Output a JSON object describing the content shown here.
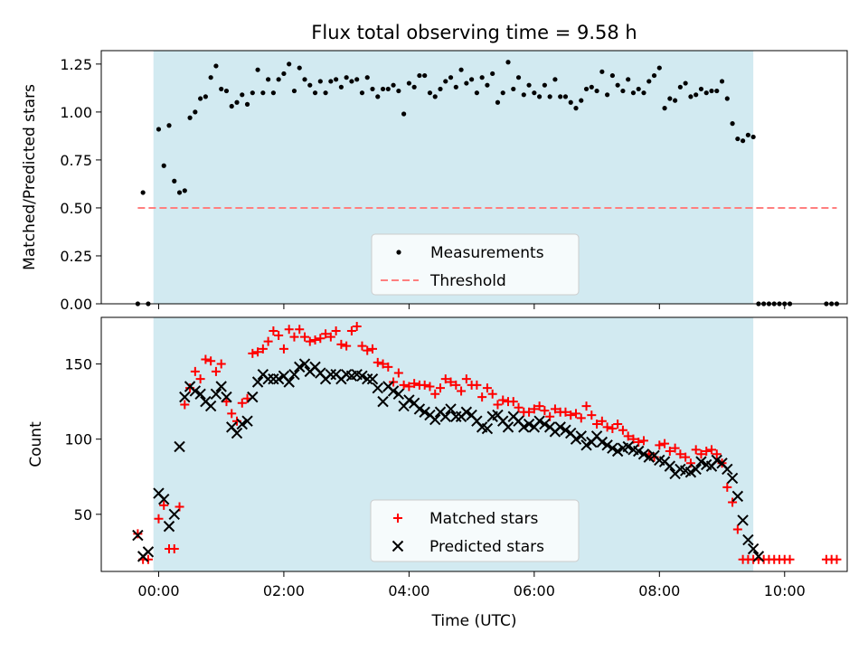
{
  "chart_data": [
    {
      "type": "scatter",
      "title": "Flux total observing time = 9.58 h",
      "ylabel": "Matched/Predicted stars",
      "xlabel": "",
      "xlim": [
        "-00:55",
        "11:00"
      ],
      "ylim": [
        0,
        1.32
      ],
      "yticks": [
        "0.00",
        "0.25",
        "0.50",
        "0.75",
        "1.00",
        "1.25"
      ],
      "x_tick_labels_visible": false,
      "observing_window": [
        "-00:05",
        "09:30"
      ],
      "legend": {
        "placement": "lower-center",
        "entries": [
          "Measurements",
          "Threshold"
        ]
      },
      "threshold": {
        "name": "Threshold",
        "value": 0.5,
        "x_range": [
          "-00:20",
          "10:50"
        ],
        "color": "#ff7f7f"
      },
      "series": [
        {
          "name": "Measurements",
          "marker": "dot",
          "color": "#000000",
          "x": [
            "-00:20",
            "-00:15",
            "-00:10",
            "00:00",
            "00:05",
            "00:10",
            "00:15",
            "00:20",
            "00:25",
            "00:30",
            "00:35",
            "00:40",
            "00:45",
            "00:50",
            "00:55",
            "01:00",
            "01:05",
            "01:10",
            "01:15",
            "01:20",
            "01:25",
            "01:30",
            "01:35",
            "01:40",
            "01:45",
            "01:50",
            "01:55",
            "02:00",
            "02:05",
            "02:10",
            "02:15",
            "02:20",
            "02:25",
            "02:30",
            "02:35",
            "02:40",
            "02:45",
            "02:50",
            "02:55",
            "03:00",
            "03:05",
            "03:10",
            "03:15",
            "03:20",
            "03:25",
            "03:30",
            "03:35",
            "03:40",
            "03:45",
            "03:50",
            "03:55",
            "04:00",
            "04:05",
            "04:10",
            "04:15",
            "04:20",
            "04:25",
            "04:30",
            "04:35",
            "04:40",
            "04:45",
            "04:50",
            "04:55",
            "05:00",
            "05:05",
            "05:10",
            "05:15",
            "05:20",
            "05:25",
            "05:30",
            "05:35",
            "05:40",
            "05:45",
            "05:50",
            "05:55",
            "06:00",
            "06:05",
            "06:10",
            "06:15",
            "06:20",
            "06:25",
            "06:30",
            "06:35",
            "06:40",
            "06:45",
            "06:50",
            "06:55",
            "07:00",
            "07:05",
            "07:10",
            "07:15",
            "07:20",
            "07:25",
            "07:30",
            "07:35",
            "07:40",
            "07:45",
            "07:50",
            "07:55",
            "08:00",
            "08:05",
            "08:10",
            "08:15",
            "08:20",
            "08:25",
            "08:30",
            "08:35",
            "08:40",
            "08:45",
            "08:50",
            "08:55",
            "09:00",
            "09:05",
            "09:10",
            "09:15",
            "09:20",
            "09:25",
            "09:30",
            "09:35",
            "09:40",
            "09:45",
            "09:50",
            "09:55",
            "10:00",
            "10:05",
            "10:40",
            "10:45",
            "10:50"
          ],
          "y": [
            0.0,
            0.58,
            0.0,
            0.91,
            0.72,
            0.93,
            0.64,
            0.58,
            0.59,
            0.97,
            1.0,
            1.07,
            1.08,
            1.18,
            1.24,
            1.12,
            1.11,
            1.03,
            1.05,
            1.09,
            1.04,
            1.1,
            1.22,
            1.1,
            1.17,
            1.1,
            1.17,
            1.2,
            1.25,
            1.11,
            1.23,
            1.17,
            1.14,
            1.1,
            1.16,
            1.1,
            1.16,
            1.17,
            1.13,
            1.18,
            1.16,
            1.17,
            1.1,
            1.18,
            1.12,
            1.08,
            1.12,
            1.12,
            1.14,
            1.11,
            0.99,
            1.15,
            1.13,
            1.19,
            1.19,
            1.1,
            1.08,
            1.12,
            1.16,
            1.18,
            1.13,
            1.22,
            1.15,
            1.17,
            1.1,
            1.18,
            1.14,
            1.2,
            1.05,
            1.1,
            1.26,
            1.12,
            1.18,
            1.09,
            1.14,
            1.1,
            1.08,
            1.14,
            1.08,
            1.17,
            1.08,
            1.08,
            1.05,
            1.02,
            1.06,
            1.12,
            1.13,
            1.11,
            1.21,
            1.09,
            1.19,
            1.14,
            1.11,
            1.17,
            1.1,
            1.12,
            1.1,
            1.16,
            1.19,
            1.23,
            1.02,
            1.07,
            1.06,
            1.13,
            1.15,
            1.08,
            1.09,
            1.12,
            1.1,
            1.11,
            1.11,
            1.16,
            1.07,
            0.94,
            0.86,
            0.85,
            0.88,
            0.87,
            0.0,
            0.0,
            0.0,
            0.0,
            0.0,
            0.0,
            0.0,
            0.0,
            0.0,
            0.0
          ]
        }
      ]
    },
    {
      "type": "scatter",
      "title": "",
      "ylabel": "Count",
      "xlabel": "Time (UTC)",
      "xlim": [
        "-00:55",
        "11:00"
      ],
      "ylim": [
        12,
        181
      ],
      "yticks": [
        "50",
        "100",
        "150"
      ],
      "xticks": [
        "00:00",
        "02:00",
        "04:00",
        "06:00",
        "08:00",
        "10:00"
      ],
      "observing_window": [
        "-00:05",
        "09:30"
      ],
      "legend": {
        "placement": "lower-center",
        "entries": [
          "Matched stars",
          "Predicted stars"
        ]
      },
      "series": [
        {
          "name": "Matched stars",
          "marker": "plus",
          "color": "#ff0000",
          "x": [
            "-00:20",
            "-00:15",
            "-00:10",
            "00:00",
            "00:05",
            "00:10",
            "00:15",
            "00:20",
            "00:25",
            "00:30",
            "00:35",
            "00:40",
            "00:45",
            "00:50",
            "00:55",
            "01:00",
            "01:05",
            "01:10",
            "01:15",
            "01:20",
            "01:25",
            "01:30",
            "01:35",
            "01:40",
            "01:45",
            "01:50",
            "01:55",
            "02:00",
            "02:05",
            "02:10",
            "02:15",
            "02:20",
            "02:25",
            "02:30",
            "02:35",
            "02:40",
            "02:45",
            "02:50",
            "02:55",
            "03:00",
            "03:05",
            "03:10",
            "03:15",
            "03:20",
            "03:25",
            "03:30",
            "03:35",
            "03:40",
            "03:45",
            "03:50",
            "03:55",
            "04:00",
            "04:05",
            "04:10",
            "04:15",
            "04:20",
            "04:25",
            "04:30",
            "04:35",
            "04:40",
            "04:45",
            "04:50",
            "04:55",
            "05:00",
            "05:05",
            "05:10",
            "05:15",
            "05:20",
            "05:25",
            "05:30",
            "05:35",
            "05:40",
            "05:45",
            "05:50",
            "05:55",
            "06:00",
            "06:05",
            "06:10",
            "06:15",
            "06:20",
            "06:25",
            "06:30",
            "06:35",
            "06:40",
            "06:45",
            "06:50",
            "06:55",
            "07:00",
            "07:05",
            "07:10",
            "07:15",
            "07:20",
            "07:25",
            "07:30",
            "07:35",
            "07:40",
            "07:45",
            "07:50",
            "07:55",
            "08:00",
            "08:05",
            "08:10",
            "08:15",
            "08:20",
            "08:25",
            "08:30",
            "08:35",
            "08:40",
            "08:45",
            "08:50",
            "08:55",
            "09:00",
            "09:05",
            "09:10",
            "09:15",
            "09:20",
            "09:25",
            "09:30",
            "09:35",
            "09:40",
            "09:45",
            "09:50",
            "09:55",
            "10:00",
            "10:05",
            "10:40",
            "10:45",
            "10:50"
          ],
          "y": [
            37,
            20,
            20,
            47,
            56,
            27,
            27,
            55,
            123,
            134,
            145,
            140,
            153,
            152,
            145,
            150,
            125,
            117,
            112,
            124,
            127,
            157,
            158,
            160,
            165,
            172,
            169,
            160,
            173,
            168,
            173,
            168,
            165,
            166,
            167,
            170,
            168,
            172,
            163,
            162,
            172,
            175,
            162,
            159,
            160,
            151,
            150,
            148,
            138,
            144,
            136,
            135,
            137,
            136,
            136,
            135,
            130,
            134,
            140,
            138,
            136,
            132,
            140,
            136,
            136,
            128,
            134,
            130,
            123,
            126,
            125,
            125,
            121,
            118,
            118,
            120,
            122,
            119,
            115,
            120,
            118,
            118,
            116,
            117,
            114,
            122,
            116,
            110,
            112,
            108,
            107,
            110,
            106,
            102,
            100,
            98,
            99,
            90,
            88,
            96,
            97,
            92,
            94,
            90,
            88,
            84,
            93,
            90,
            92,
            93,
            90,
            84,
            68,
            58,
            40,
            20,
            20,
            20,
            20,
            20,
            20,
            20,
            20,
            20,
            20,
            20,
            20,
            20
          ]
        },
        {
          "name": "Predicted stars",
          "marker": "cross",
          "color": "#000000",
          "x": [
            "-00:20",
            "-00:15",
            "-00:10",
            "00:00",
            "00:05",
            "00:10",
            "00:15",
            "00:20",
            "00:25",
            "00:30",
            "00:35",
            "00:40",
            "00:45",
            "00:50",
            "00:55",
            "01:00",
            "01:05",
            "01:10",
            "01:15",
            "01:20",
            "01:25",
            "01:30",
            "01:35",
            "01:40",
            "01:45",
            "01:50",
            "01:55",
            "02:00",
            "02:05",
            "02:10",
            "02:15",
            "02:20",
            "02:25",
            "02:30",
            "02:35",
            "02:40",
            "02:45",
            "02:50",
            "02:55",
            "03:00",
            "03:05",
            "03:10",
            "03:15",
            "03:20",
            "03:25",
            "03:30",
            "03:35",
            "03:40",
            "03:45",
            "03:50",
            "03:55",
            "04:00",
            "04:05",
            "04:10",
            "04:15",
            "04:20",
            "04:25",
            "04:30",
            "04:35",
            "04:40",
            "04:45",
            "04:50",
            "04:55",
            "05:00",
            "05:05",
            "05:10",
            "05:15",
            "05:20",
            "05:25",
            "05:30",
            "05:35",
            "05:40",
            "05:45",
            "05:50",
            "05:55",
            "06:00",
            "06:05",
            "06:10",
            "06:15",
            "06:20",
            "06:25",
            "06:30",
            "06:35",
            "06:40",
            "06:45",
            "06:50",
            "06:55",
            "07:00",
            "07:05",
            "07:10",
            "07:15",
            "07:20",
            "07:25",
            "07:30",
            "07:35",
            "07:40",
            "07:45",
            "07:50",
            "07:55",
            "08:00",
            "08:05",
            "08:10",
            "08:15",
            "08:20",
            "08:25",
            "08:30",
            "08:35",
            "08:40",
            "08:45",
            "08:50",
            "08:55",
            "09:00",
            "09:05",
            "09:10",
            "09:15",
            "09:20",
            "09:25",
            "09:30",
            "09:35",
            "09:40",
            "09:45",
            "09:50",
            "09:55",
            "10:00",
            "10:05",
            "10:40",
            "10:45",
            "10:50"
          ],
          "y": [
            36,
            22,
            25,
            64,
            60,
            42,
            50,
            95,
            128,
            135,
            132,
            130,
            125,
            122,
            130,
            135,
            128,
            108,
            104,
            110,
            112,
            128,
            138,
            143,
            140,
            140,
            140,
            142,
            138,
            143,
            148,
            150,
            145,
            148,
            144,
            140,
            143,
            143,
            140,
            143,
            142,
            143,
            142,
            140,
            140,
            134,
            125,
            135,
            132,
            130,
            122,
            126,
            124,
            120,
            118,
            116,
            113,
            118,
            115,
            120,
            115,
            115,
            118,
            116,
            112,
            108,
            107,
            115,
            116,
            112,
            108,
            115,
            112,
            108,
            110,
            108,
            112,
            110,
            108,
            105,
            108,
            106,
            104,
            100,
            102,
            96,
            98,
            102,
            98,
            96,
            94,
            92,
            94,
            95,
            93,
            92,
            90,
            88,
            89,
            86,
            85,
            82,
            77,
            80,
            79,
            78,
            80,
            85,
            83,
            82,
            86,
            84,
            80,
            74,
            62,
            46,
            33,
            27,
            22,
            null,
            null,
            null,
            null,
            null,
            null,
            null,
            null,
            null
          ]
        }
      ]
    }
  ]
}
